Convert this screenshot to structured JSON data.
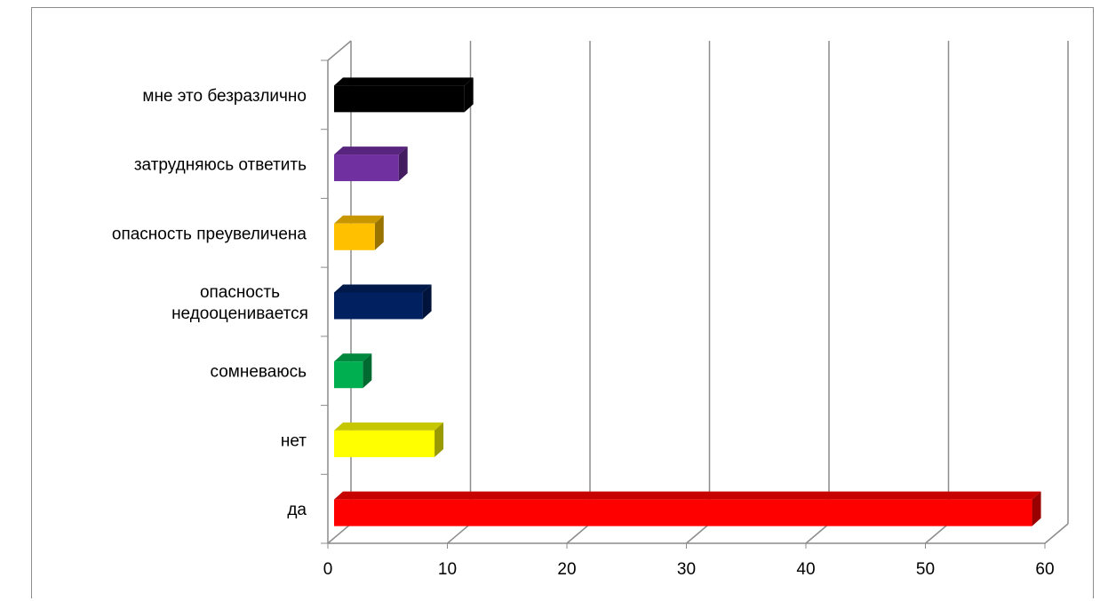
{
  "chart_data": {
    "type": "bar",
    "orientation": "horizontal",
    "three_d": true,
    "categories": [
      [
        "да"
      ],
      [
        "нет"
      ],
      [
        "сомневаюсь"
      ],
      [
        "опасность",
        "недооценивается"
      ],
      [
        "опасность преувеличена"
      ],
      [
        "затрудняюсь ответить"
      ],
      [
        "мне это безразлично"
      ]
    ],
    "values": [
      59,
      9,
      3,
      8,
      4,
      6,
      11.5
    ],
    "colors": [
      "#ff0000",
      "#ffff00",
      "#00b050",
      "#002060",
      "#ffc000",
      "#7030a0",
      "#000000"
    ],
    "xlim": [
      0,
      60
    ],
    "x_ticks": [
      0,
      10,
      20,
      30,
      40,
      50,
      60
    ],
    "grid": true,
    "legend": "none"
  }
}
